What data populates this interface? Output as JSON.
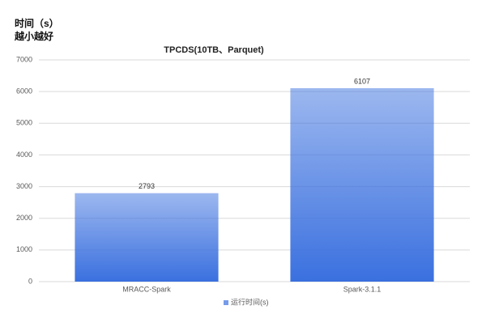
{
  "chart_data": {
    "type": "bar",
    "title": "TPCDS(10TB、Parquet)",
    "y_label": "时间（s）",
    "annotation": "越小越好",
    "categories": [
      "MRACC-Spark",
      "Spark-3.1.1"
    ],
    "series": [
      {
        "name": "运行时间(s)",
        "color": "#3a70df",
        "values": [
          2793,
          6107
        ]
      }
    ],
    "ylim": [
      0,
      7000
    ],
    "yticks": [
      0,
      1000,
      2000,
      3000,
      4000,
      5000,
      6000,
      7000
    ],
    "grid": true,
    "legend": "bottom"
  }
}
